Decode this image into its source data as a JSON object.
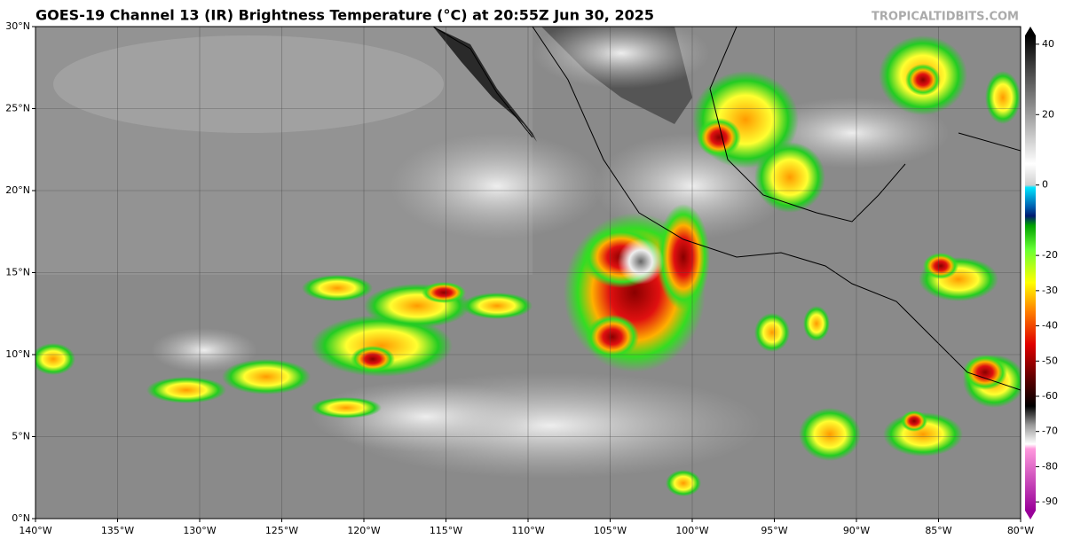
{
  "title": "GOES-19 Channel 13 (IR) Brightness Temperature (°C) at 20:55Z Jun 30, 2025",
  "watermark": "TROPICALTIDBITS.COM",
  "map": {
    "xlim": [
      -140,
      -80
    ],
    "ylim": [
      0,
      30
    ],
    "xticks": [
      {
        "value": -140,
        "label": "140°W"
      },
      {
        "value": -135,
        "label": "135°W"
      },
      {
        "value": -130,
        "label": "130°W"
      },
      {
        "value": -125,
        "label": "125°W"
      },
      {
        "value": -120,
        "label": "120°W"
      },
      {
        "value": -115,
        "label": "115°W"
      },
      {
        "value": -110,
        "label": "110°W"
      },
      {
        "value": -105,
        "label": "105°W"
      },
      {
        "value": -100,
        "label": "100°W"
      },
      {
        "value": -95,
        "label": "95°W"
      },
      {
        "value": -90,
        "label": "90°W"
      },
      {
        "value": -85,
        "label": "85°W"
      },
      {
        "value": -80,
        "label": "80°W"
      }
    ],
    "yticks": [
      {
        "value": 0,
        "label": "0°N"
      },
      {
        "value": 5,
        "label": "5°N"
      },
      {
        "value": 10,
        "label": "10°N"
      },
      {
        "value": 15,
        "label": "15°N"
      },
      {
        "value": 20,
        "label": "20°N"
      },
      {
        "value": 25,
        "label": "25°N"
      },
      {
        "value": 30,
        "label": "30°N"
      }
    ]
  },
  "colorbar": {
    "lim": [
      -95,
      45
    ],
    "ticks": [
      40,
      20,
      0,
      -20,
      -30,
      -40,
      -50,
      -60,
      -70,
      -80,
      -90
    ]
  }
}
